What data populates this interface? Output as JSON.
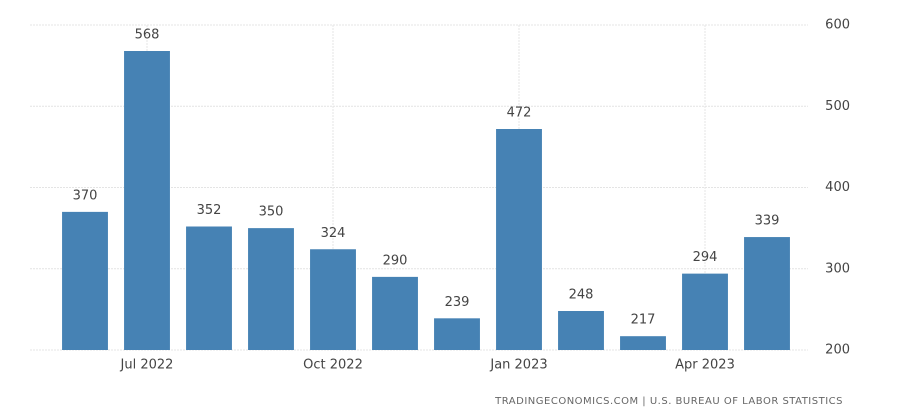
{
  "chart_data": {
    "type": "bar",
    "categories": [
      null,
      "Jul 2022",
      null,
      null,
      "Oct 2022",
      null,
      null,
      "Jan 2023",
      null,
      null,
      "Apr 2023",
      null
    ],
    "values": [
      370,
      568,
      352,
      350,
      324,
      290,
      239,
      472,
      248,
      217,
      294,
      339
    ],
    "color": "#4682b4",
    "ylim": [
      200,
      600
    ],
    "yticks": [
      200,
      300,
      400,
      500,
      600
    ],
    "grid": true,
    "source": "TRADINGECONOMICS.COM | U.S. BUREAU OF LABOR STATISTICS"
  }
}
